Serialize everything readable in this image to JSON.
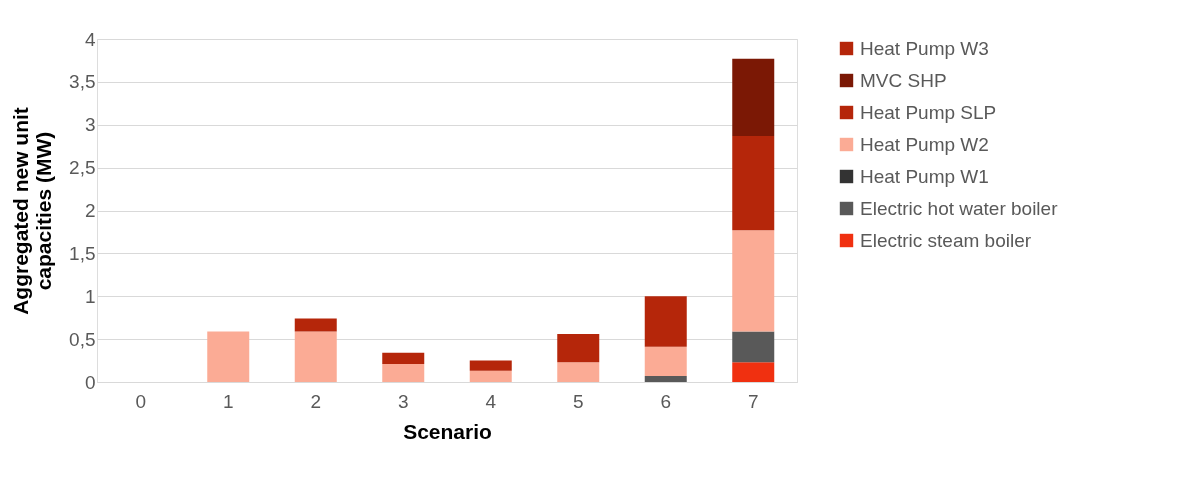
{
  "chart_data": {
    "type": "bar",
    "stacked": true,
    "xlabel": "Scenario",
    "ylabel": "Aggregated new unit capacities (MW)",
    "categories": [
      "0",
      "1",
      "2",
      "3",
      "4",
      "5",
      "6",
      "7"
    ],
    "series": [
      {
        "name": "Electric steam boiler",
        "color": "#f03010",
        "values": [
          0,
          0,
          0,
          0,
          0,
          0,
          0,
          0.23
        ]
      },
      {
        "name": "Electric hot water boiler",
        "color": "#595959",
        "values": [
          0,
          0,
          0,
          0,
          0,
          0,
          0.07,
          0.36
        ]
      },
      {
        "name": "Heat Pump W1",
        "color": "#333333",
        "values": [
          0,
          0,
          0,
          0,
          0,
          0,
          0,
          0
        ]
      },
      {
        "name": "Heat Pump W2",
        "color": "#fbab95",
        "values": [
          0,
          0.59,
          0.59,
          0.21,
          0.13,
          0.23,
          0.34,
          1.18
        ]
      },
      {
        "name": "Heat Pump SLP",
        "color": "#b5260a",
        "values": [
          0,
          0,
          0.15,
          0.13,
          0.12,
          0.33,
          0.59,
          1.1
        ]
      },
      {
        "name": "MVC SHP",
        "color": "#7b1805",
        "values": [
          0,
          0,
          0,
          0,
          0,
          0,
          0,
          0.9
        ]
      },
      {
        "name": "Heat Pump W3",
        "color": "#b5260a",
        "values": [
          0,
          0,
          0,
          0,
          0,
          0,
          0,
          0
        ]
      }
    ],
    "ylim": [
      0,
      4
    ],
    "yticks": [
      0,
      {
        "value": 0.5,
        "label": "0,5"
      },
      1,
      {
        "value": 1.5,
        "label": "1,5"
      },
      2,
      {
        "value": 2.5,
        "label": "2,5"
      },
      3,
      {
        "value": 3.5,
        "label": "3,5"
      },
      4
    ],
    "grid": "y",
    "legend": "right"
  }
}
